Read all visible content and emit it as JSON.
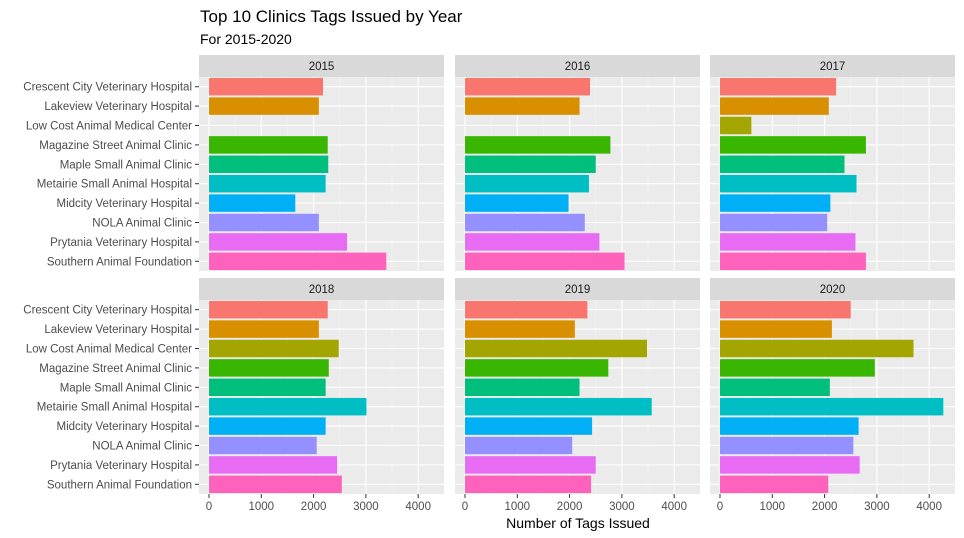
{
  "chart_data": {
    "type": "bar",
    "orientation": "horizontal",
    "faceted": true,
    "title": "Top 10 Clinics Tags Issued by Year",
    "subtitle": "For 2015-2020",
    "xlabel": "Number of Tags Issued",
    "ylabel": "",
    "xlim": [
      0,
      4400
    ],
    "xticks": [
      0,
      1000,
      2000,
      3000,
      4000
    ],
    "grid": true,
    "legend": "none",
    "categories": [
      "Crescent City Veterinary Hospital",
      "Lakeview Veterinary Hospital",
      "Low Cost Animal Medical Center",
      "Magazine Street Animal Clinic",
      "Maple Small Animal Clinic",
      "Metairie Small Animal Hospital",
      "Midcity Veterinary Hospital",
      "NOLA Animal Clinic",
      "Prytania Veterinary Hospital",
      "Southern Animal Foundation"
    ],
    "colors": [
      "#F8766D",
      "#D89000",
      "#A3A500",
      "#39B600",
      "#00BF7D",
      "#00BFC4",
      "#00B0F6",
      "#9590FF",
      "#E76BF3",
      "#FF62BC"
    ],
    "panels": [
      {
        "year": "2015",
        "values": [
          2180,
          2100,
          0,
          2270,
          2280,
          2230,
          1650,
          2100,
          2640,
          3390
        ]
      },
      {
        "year": "2016",
        "values": [
          2390,
          2190,
          0,
          2780,
          2500,
          2370,
          1980,
          2290,
          2570,
          3050
        ]
      },
      {
        "year": "2017",
        "values": [
          2220,
          2080,
          600,
          2790,
          2380,
          2610,
          2110,
          2050,
          2590,
          2790
        ]
      },
      {
        "year": "2018",
        "values": [
          2270,
          2100,
          2480,
          2290,
          2230,
          3010,
          2230,
          2060,
          2450,
          2540
        ]
      },
      {
        "year": "2019",
        "values": [
          2340,
          2100,
          3480,
          2740,
          2190,
          3570,
          2430,
          2050,
          2500,
          2410
        ]
      },
      {
        "year": "2020",
        "values": [
          2500,
          2140,
          3700,
          2960,
          2100,
          4270,
          2650,
          2550,
          2670,
          2070
        ]
      }
    ]
  }
}
